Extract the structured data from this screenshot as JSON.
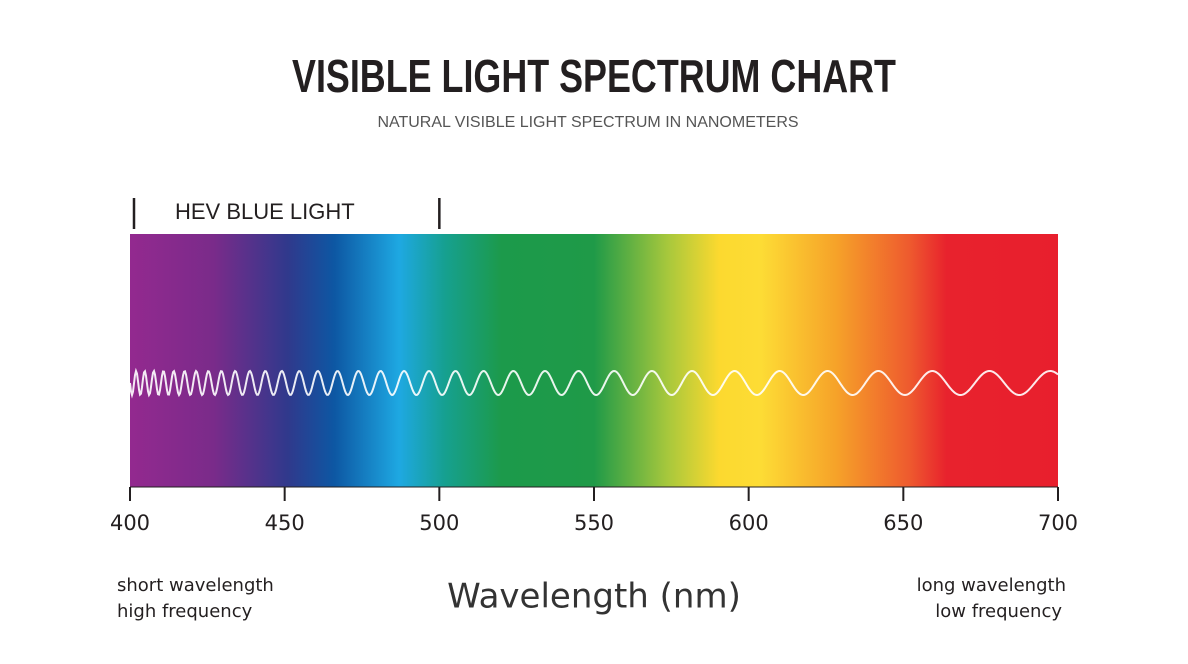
{
  "chart_data": {
    "type": "spectrum",
    "title": "VISIBLE LIGHT SPECTRUM CHART",
    "subtitle": "NATURAL VISIBLE LIGHT SPECTRUM IN NANOMETERS",
    "xlabel": "Wavelength (nm)",
    "xlim": [
      400,
      700
    ],
    "xticks": [
      400,
      450,
      500,
      550,
      600,
      650,
      700
    ],
    "hev_range": {
      "label": "HEV BLUE LIGHT",
      "start": 400,
      "end": 500
    },
    "left_note": [
      "short wavelength",
      "high frequency"
    ],
    "right_note": [
      "long wavelength",
      "low frequency"
    ]
  }
}
